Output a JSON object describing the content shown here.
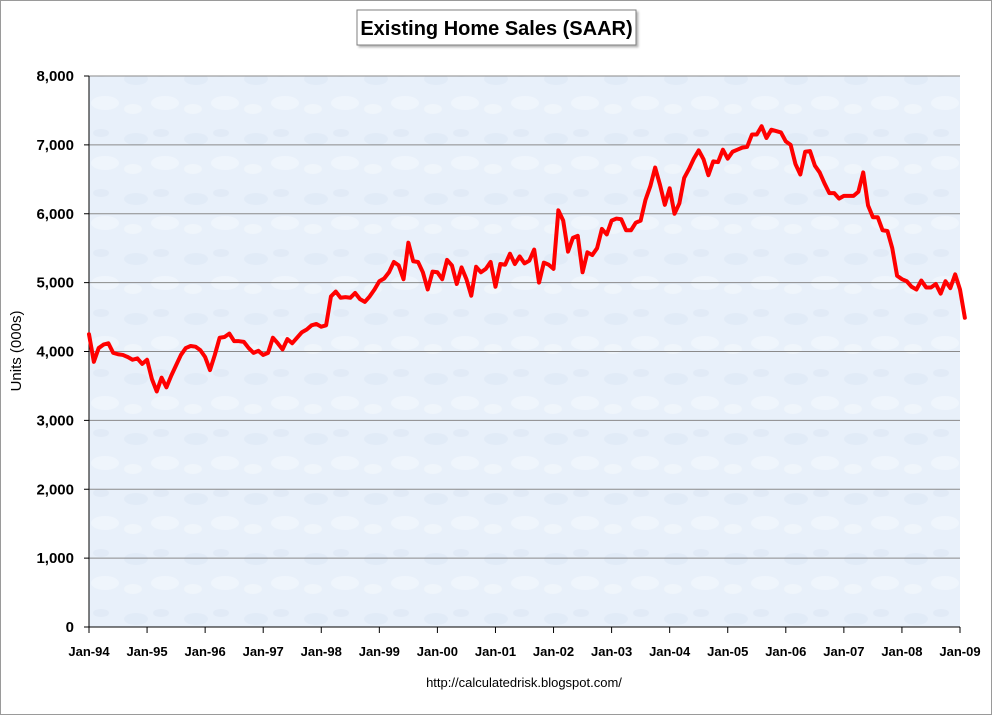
{
  "chart_data": {
    "type": "line",
    "title": "Existing Home Sales (SAAR)",
    "xlabel": "",
    "ylabel": "Units (000s)",
    "ylim": [
      0,
      8000
    ],
    "ytick_values": [
      0,
      1000,
      2000,
      3000,
      4000,
      5000,
      6000,
      7000,
      8000
    ],
    "ytick_labels": [
      "0",
      "1,000",
      "2,000",
      "3,000",
      "4,000",
      "5,000",
      "6,000",
      "7,000",
      "8,000"
    ],
    "xtick_labels": [
      "Jan-94",
      "Jan-95",
      "Jan-96",
      "Jan-97",
      "Jan-98",
      "Jan-99",
      "Jan-00",
      "Jan-01",
      "Jan-02",
      "Jan-03",
      "Jan-04",
      "Jan-05",
      "Jan-06",
      "Jan-07",
      "Jan-08",
      "Jan-09"
    ],
    "x_start": "Jan-94",
    "grid": true,
    "legend": "none",
    "source": "http://calculatedrisk.blogspot.com/",
    "series_color": "#ff0000",
    "values": [
      4250,
      3850,
      4050,
      4100,
      4120,
      3980,
      3960,
      3950,
      3920,
      3880,
      3900,
      3820,
      3880,
      3600,
      3420,
      3620,
      3480,
      3650,
      3800,
      3950,
      4050,
      4080,
      4070,
      4020,
      3920,
      3730,
      3950,
      4200,
      4210,
      4260,
      4150,
      4150,
      4140,
      4050,
      3980,
      4010,
      3950,
      3980,
      4200,
      4120,
      4030,
      4180,
      4120,
      4200,
      4280,
      4320,
      4380,
      4400,
      4360,
      4380,
      4800,
      4870,
      4780,
      4790,
      4780,
      4850,
      4760,
      4720,
      4800,
      4900,
      5020,
      5060,
      5150,
      5300,
      5250,
      5050,
      5580,
      5310,
      5300,
      5150,
      4900,
      5160,
      5150,
      5050,
      5330,
      5250,
      4980,
      5220,
      5050,
      4810,
      5230,
      5150,
      5200,
      5300,
      4940,
      5270,
      5260,
      5420,
      5270,
      5380,
      5280,
      5320,
      5480,
      5000,
      5290,
      5260,
      5200,
      6050,
      5900,
      5450,
      5650,
      5680,
      5150,
      5440,
      5400,
      5500,
      5780,
      5700,
      5900,
      5930,
      5920,
      5760,
      5760,
      5870,
      5900,
      6200,
      6400,
      6670,
      6420,
      6130,
      6370,
      6000,
      6150,
      6520,
      6650,
      6800,
      6920,
      6790,
      6560,
      6760,
      6750,
      6930,
      6800,
      6900,
      6930,
      6960,
      6970,
      7150,
      7150,
      7270,
      7100,
      7220,
      7200,
      7180,
      7050,
      7000,
      6720,
      6570,
      6900,
      6910,
      6700,
      6600,
      6440,
      6300,
      6300,
      6220,
      6260,
      6260,
      6260,
      6320,
      6600,
      6120,
      5950,
      5950,
      5760,
      5750,
      5500,
      5100,
      5050,
      5020,
      4940,
      4900,
      5030,
      4930,
      4930,
      4980,
      4840,
      5020,
      4920,
      5120,
      4900,
      4490
    ]
  }
}
